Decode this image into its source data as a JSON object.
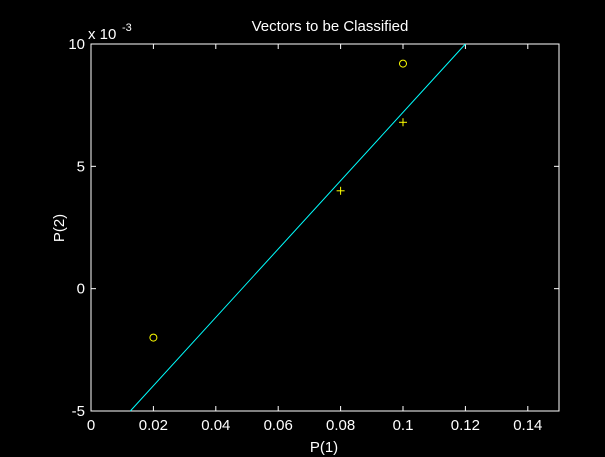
{
  "colors": {
    "background": "#000000",
    "axes": "#ffffff",
    "line": "#00ffff",
    "markers": "#ffff00",
    "text": "#ffffff"
  },
  "chart_data": {
    "type": "scatter",
    "title": "Vectors to be Classified",
    "xlabel": "P(1)",
    "ylabel": "P(2)",
    "xlim": [
      0,
      0.15
    ],
    "ylim": [
      -0.005,
      0.01
    ],
    "x_ticks": [
      0,
      0.02,
      0.04,
      0.06,
      0.08,
      0.1,
      0.12,
      0.14
    ],
    "x_tick_labels": [
      "0",
      "0.02",
      "0.04",
      "0.06",
      "0.08",
      "0.1",
      "0.12",
      "0.14"
    ],
    "y_ticks": [
      -0.005,
      0,
      0.005,
      0.01
    ],
    "y_tick_labels": [
      "-5",
      "0",
      "5",
      "10"
    ],
    "y_exponent_label": "x 10",
    "y_exponent_power": "-3",
    "grid": false,
    "series": [
      {
        "marker": "o",
        "color": "#ffff00",
        "points": [
          {
            "x": 0.02,
            "y": -0.002
          },
          {
            "x": 0.1,
            "y": 0.0092
          }
        ]
      },
      {
        "marker": "+",
        "color": "#ffff00",
        "points": [
          {
            "x": 0.08,
            "y": 0.004
          },
          {
            "x": 0.1,
            "y": 0.0068
          }
        ]
      }
    ],
    "decision_line": {
      "color": "#00ffff",
      "points": [
        {
          "x": 0.0126,
          "y": -0.005
        },
        {
          "x": 0.12,
          "y": 0.01
        }
      ]
    }
  }
}
